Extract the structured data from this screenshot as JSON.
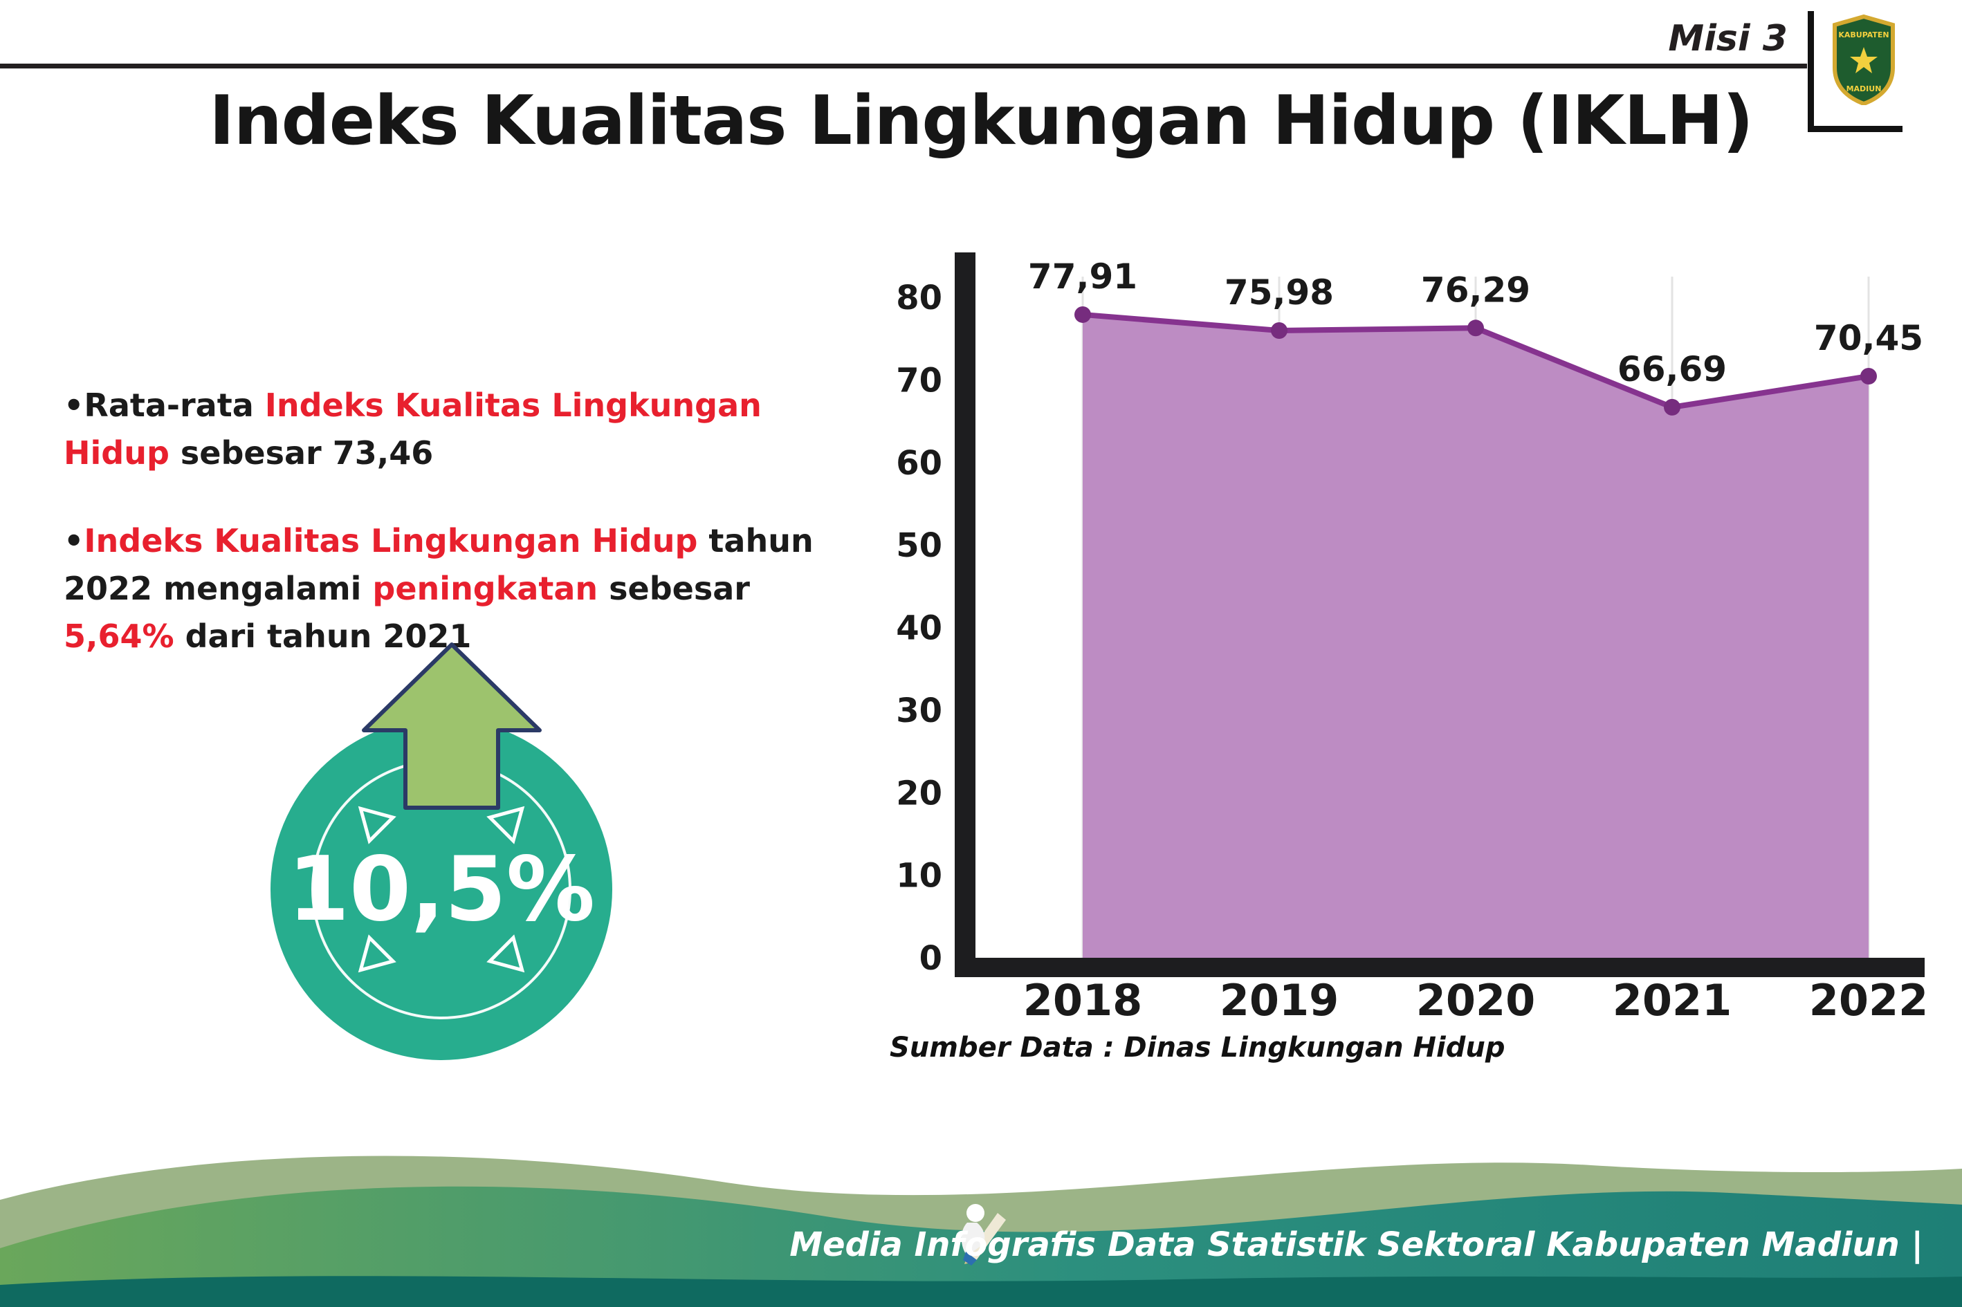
{
  "header": {
    "misi": "Misi 3",
    "title": "Indeks Kualitas Lingkungan Hidup (IKLH)",
    "logo": {
      "line1": "KABUPATEN",
      "line2": "MADIUN"
    }
  },
  "bullets": [
    {
      "marker": "•",
      "segments": [
        {
          "text": "Rata-rata ",
          "red": false
        },
        {
          "text": "Indeks Kualitas Lingkungan Hidup",
          "red": true
        },
        {
          "text": " sebesar 73,46",
          "red": false
        }
      ]
    },
    {
      "marker": "•",
      "segments": [
        {
          "text": "Indeks Kualitas Lingkungan Hidup",
          "red": true
        },
        {
          "text": " tahun 2022 mengalami ",
          "red": false
        },
        {
          "text": "peningkatan",
          "red": true
        },
        {
          "text": " sebesar ",
          "red": false
        },
        {
          "text": "5,64%",
          "red": true
        },
        {
          "text": " dari tahun 2021",
          "red": false
        }
      ]
    }
  ],
  "badge": {
    "value": "10,5%"
  },
  "chart_data": {
    "type": "area",
    "title": "Indeks Kualitas Lingkungan Hidup (IKLH)",
    "categories": [
      "2018",
      "2019",
      "2020",
      "2021",
      "2022"
    ],
    "values": [
      77.91,
      75.98,
      76.29,
      66.69,
      70.45
    ],
    "value_labels": [
      "77,91",
      "75,98",
      "76,29",
      "66,69",
      "70,45"
    ],
    "yticks": [
      0,
      10,
      20,
      30,
      40,
      50,
      60,
      70,
      80
    ],
    "ylim": [
      0,
      80
    ],
    "xlabel": "",
    "ylabel": "",
    "grid": "vertical",
    "legend": "none",
    "source": "Sumber Data : Dinas Lingkungan Hidup",
    "colors": {
      "fill": "#bd8cc3",
      "line": "#86338f",
      "point": "#762c7e",
      "axis": "#1d1d1f",
      "gridline": "#e3e3e3",
      "label": "#1a1a1a"
    }
  },
  "footer": {
    "text": "Media Infografis Data Statistik Sektoral Kabupaten Madiun |"
  },
  "colors": {
    "accent_red": "#e8202e",
    "badge_teal": "#27ad8e",
    "arrow_green": "#9dc36d",
    "arrow_outline": "#2b3a66",
    "footer_sage": "#9cb487",
    "footer_teal_dark": "#0f6a60"
  }
}
